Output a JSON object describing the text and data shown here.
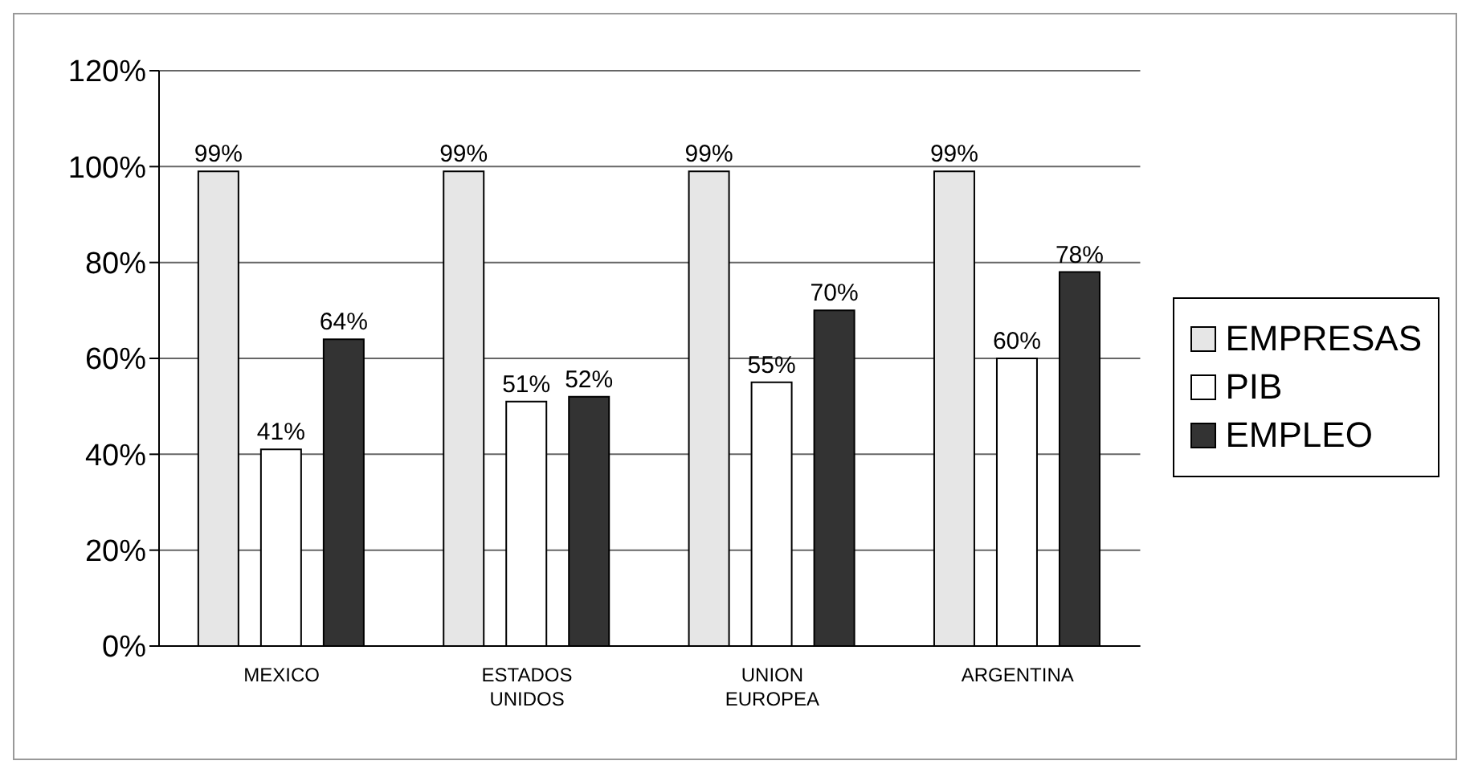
{
  "chart_data": {
    "type": "bar",
    "categories": [
      "MEXICO",
      "ESTADOS UNIDOS",
      "UNION EUROPEA",
      "ARGENTINA"
    ],
    "series": [
      {
        "name": "EMPRESAS",
        "color": "#e6e6e6",
        "values": [
          99,
          99,
          99,
          99
        ],
        "value_labels": [
          "99%",
          "99%",
          "99%",
          "99%"
        ]
      },
      {
        "name": "PIB",
        "color": "#ffffff",
        "values": [
          41,
          51,
          55,
          60
        ],
        "value_labels": [
          "41%",
          "51%",
          "55%",
          "60%"
        ]
      },
      {
        "name": "EMPLEO",
        "color": "#333333",
        "values": [
          64,
          52,
          70,
          78
        ],
        "value_labels": [
          "64%",
          "52%",
          "70%",
          "78%"
        ]
      }
    ],
    "ylim": [
      0,
      120
    ],
    "yticks": [
      {
        "value": 0,
        "label": "0%"
      },
      {
        "value": 20,
        "label": "20%"
      },
      {
        "value": 40,
        "label": "40%"
      },
      {
        "value": 60,
        "label": "60%"
      },
      {
        "value": 80,
        "label": "80%"
      },
      {
        "value": 100,
        "label": "100%"
      },
      {
        "value": 120,
        "label": "120%"
      }
    ],
    "grid": "y",
    "legend": "right"
  }
}
